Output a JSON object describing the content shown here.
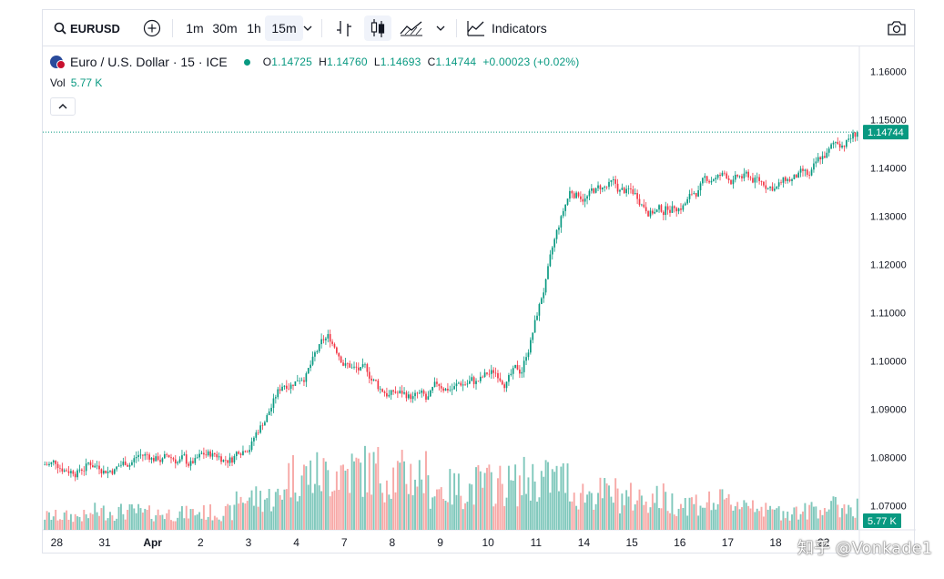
{
  "toolbar": {
    "symbol": "EURUSD",
    "timeframes": [
      "1m",
      "30m",
      "1h",
      "15m"
    ],
    "active_timeframe": "15m",
    "indicators_label": "Indicators"
  },
  "legend": {
    "title": "Euro / U.S. Dollar · 15 · ICE",
    "open_key": "O",
    "open": "1.14725",
    "high_key": "H",
    "high": "1.14760",
    "low_key": "L",
    "low": "1.14693",
    "close_key": "C",
    "close": "1.14744",
    "change": "+0.00023 (+0.02%)",
    "vol_label": "Vol",
    "vol_value": "5.77 K"
  },
  "watermark": "知乎 @Vonkade1",
  "colors": {
    "up": "#089981",
    "down": "#f23645",
    "vol_up": "#80c8bc",
    "vol_down": "#f7a9a7"
  },
  "chart_data": {
    "type": "candlestick",
    "title": "Euro / U.S. Dollar · 15 · ICE",
    "ylim": [
      1.065,
      1.165
    ],
    "y_ticks": [
      "1.16000",
      "1.15000",
      "1.14000",
      "1.13000",
      "1.12000",
      "1.11000",
      "1.10000",
      "1.09000",
      "1.08000",
      "1.07000"
    ],
    "x_tick_labels": [
      "28",
      "31",
      "Apr",
      "2",
      "3",
      "4",
      "7",
      "8",
      "9",
      "10",
      "11",
      "14",
      "15",
      "16",
      "17",
      "18",
      "22"
    ],
    "last_price": "1.14744",
    "last_volume": "5.77 K",
    "series": [
      {
        "name": "Price",
        "x": [
          "28",
          "31",
          "Apr",
          "2",
          "3",
          "4",
          "7",
          "8",
          "9",
          "10",
          "11",
          "14",
          "15",
          "16",
          "17",
          "18",
          "22"
        ],
        "close": [
          1.079,
          1.0805,
          1.0795,
          1.08,
          1.095,
          1.105,
          1.095,
          1.092,
          1.096,
          1.098,
          1.135,
          1.136,
          1.131,
          1.138,
          1.137,
          1.138,
          1.1474
        ]
      },
      {
        "name": "Vol",
        "x": [
          "28",
          "31",
          "Apr",
          "2",
          "3",
          "4",
          "7",
          "8",
          "9",
          "10",
          "11",
          "14",
          "15",
          "16",
          "17",
          "18",
          "22"
        ],
        "values": [
          1.5,
          2.0,
          1.8,
          1.9,
          3.5,
          6.0,
          6.5,
          6.0,
          4.5,
          5.0,
          5.5,
          4.0,
          3.5,
          3.0,
          3.0,
          2.0,
          2.5
        ]
      }
    ],
    "grid": false
  }
}
